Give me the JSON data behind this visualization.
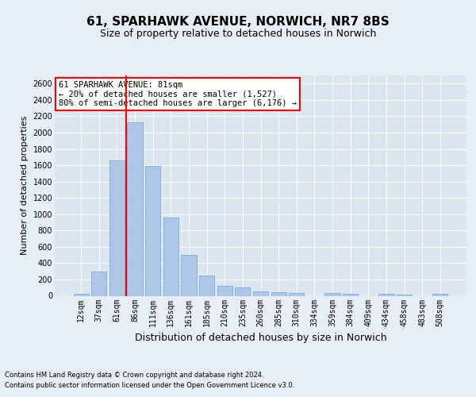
{
  "title_line1": "61, SPARHAWK AVENUE, NORWICH, NR7 8BS",
  "title_line2": "Size of property relative to detached houses in Norwich",
  "xlabel": "Distribution of detached houses by size in Norwich",
  "ylabel": "Number of detached properties",
  "footer_line1": "Contains HM Land Registry data © Crown copyright and database right 2024.",
  "footer_line2": "Contains public sector information licensed under the Open Government Licence v3.0.",
  "categories": [
    "12sqm",
    "37sqm",
    "61sqm",
    "86sqm",
    "111sqm",
    "136sqm",
    "161sqm",
    "185sqm",
    "210sqm",
    "235sqm",
    "260sqm",
    "285sqm",
    "310sqm",
    "334sqm",
    "359sqm",
    "384sqm",
    "409sqm",
    "434sqm",
    "458sqm",
    "483sqm",
    "508sqm"
  ],
  "values": [
    25,
    300,
    1660,
    2130,
    1590,
    960,
    500,
    250,
    120,
    100,
    50,
    40,
    30,
    0,
    35,
    20,
    0,
    25,
    10,
    0,
    25
  ],
  "bar_color": "#aec6e8",
  "bar_edge_color": "#7aafd4",
  "vline_color": "red",
  "vline_index": 2.5,
  "annotation_text": "61 SPARHAWK AVENUE: 81sqm\n← 20% of detached houses are smaller (1,527)\n80% of semi-detached houses are larger (6,176) →",
  "annotation_box_color": "white",
  "annotation_box_edge_color": "red",
  "ylim": [
    0,
    2700
  ],
  "yticks": [
    0,
    200,
    400,
    600,
    800,
    1000,
    1200,
    1400,
    1600,
    1800,
    2000,
    2200,
    2400,
    2600
  ],
  "fig_bg_color": "#e8eef5",
  "plot_bg_color": "#dce6f0",
  "grid_color": "white",
  "title_fontsize": 11,
  "subtitle_fontsize": 9,
  "ylabel_fontsize": 8,
  "xlabel_fontsize": 9,
  "tick_fontsize": 7,
  "annotation_fontsize": 7.5,
  "footer_fontsize": 6
}
